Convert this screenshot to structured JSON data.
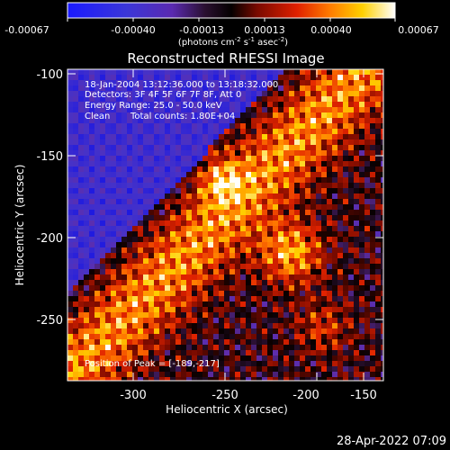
{
  "colorbar": {
    "ticks": [
      "-0.00067",
      "-0.00040",
      "-0.00013",
      "0.00013",
      "0.00040",
      "0.00067"
    ],
    "unit_main": "(photons cm",
    "unit_exp1": "-2",
    "unit_s": " s",
    "unit_exp2": "-1",
    "unit_asec": " asec",
    "unit_exp3": "-2",
    "unit_close": ")"
  },
  "title": "Reconstructed RHESSI Image",
  "annotations": {
    "line1": "18-Jan-2004 13:12:36.000 to 13:18:32.000",
    "line2": "Detectors: 3F 4F 5F 6F 7F 8F, Att 0",
    "line3": "Energy Range: 25.0 - 50.0 keV",
    "line4_left": "Clean",
    "line4_right": "Total counts: 1.80E+04",
    "peak": "Position of Peak = [-189,-217]"
  },
  "x_axis": {
    "label": "Heliocentric X (arcsec)",
    "ticks": [
      "-300",
      "-250",
      "-200",
      "-150"
    ],
    "range": [
      -326,
      -128
    ]
  },
  "y_axis": {
    "label": "Heliocentric Y (arcsec)",
    "ticks": [
      "-100",
      "-150",
      "-200",
      "-250"
    ],
    "range": [
      -288,
      -94
    ]
  },
  "timestamp": "28-Apr-2022 07:09",
  "colors": {
    "background": "#000000",
    "frame": "#ffffff"
  }
}
